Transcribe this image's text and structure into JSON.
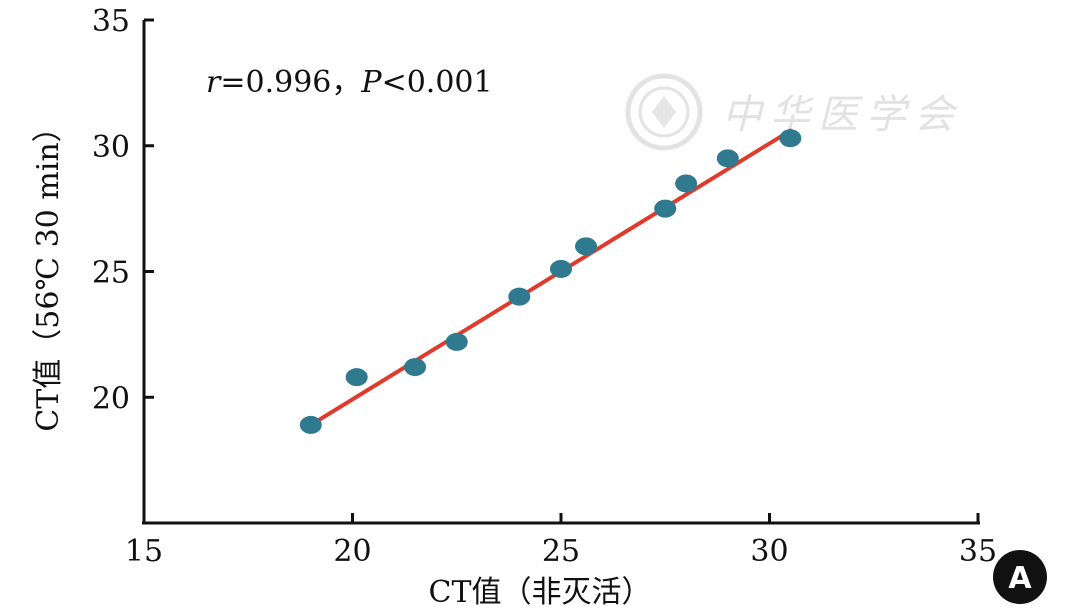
{
  "chart_data": {
    "type": "scatter",
    "xlabel": "CT值（非灭活）",
    "ylabel": "CT值（56℃ 30 min）",
    "xlim": [
      15,
      35
    ],
    "ylim": [
      15,
      35
    ],
    "xticks": [
      "15",
      "20",
      "25",
      "30",
      "35"
    ],
    "yticks": [
      "20",
      "25",
      "30",
      "35"
    ],
    "points": [
      {
        "x": 19.0,
        "y": 18.9
      },
      {
        "x": 20.1,
        "y": 20.8
      },
      {
        "x": 21.5,
        "y": 21.2
      },
      {
        "x": 22.5,
        "y": 22.2
      },
      {
        "x": 24.0,
        "y": 24.0
      },
      {
        "x": 25.0,
        "y": 25.1
      },
      {
        "x": 25.6,
        "y": 26.0
      },
      {
        "x": 27.5,
        "y": 27.5
      },
      {
        "x": 28.0,
        "y": 28.5
      },
      {
        "x": 29.0,
        "y": 29.5
      },
      {
        "x": 30.5,
        "y": 30.3
      }
    ],
    "fit_line": {
      "x": [
        19.0,
        30.5
      ],
      "y": [
        18.9,
        30.6
      ]
    },
    "annotation": {
      "r_symbol": "r",
      "r_text": "=0.996，",
      "p_symbol": "P",
      "p_text": "<0.001"
    },
    "panel_label": "A",
    "watermark": "中华医学会",
    "grid": false,
    "colors": {
      "points": "#2f7a8e",
      "fit_line": "#e03a2c",
      "axis": "#111111",
      "panel_badge": "#111111",
      "watermark": "#e2e2e2"
    }
  }
}
